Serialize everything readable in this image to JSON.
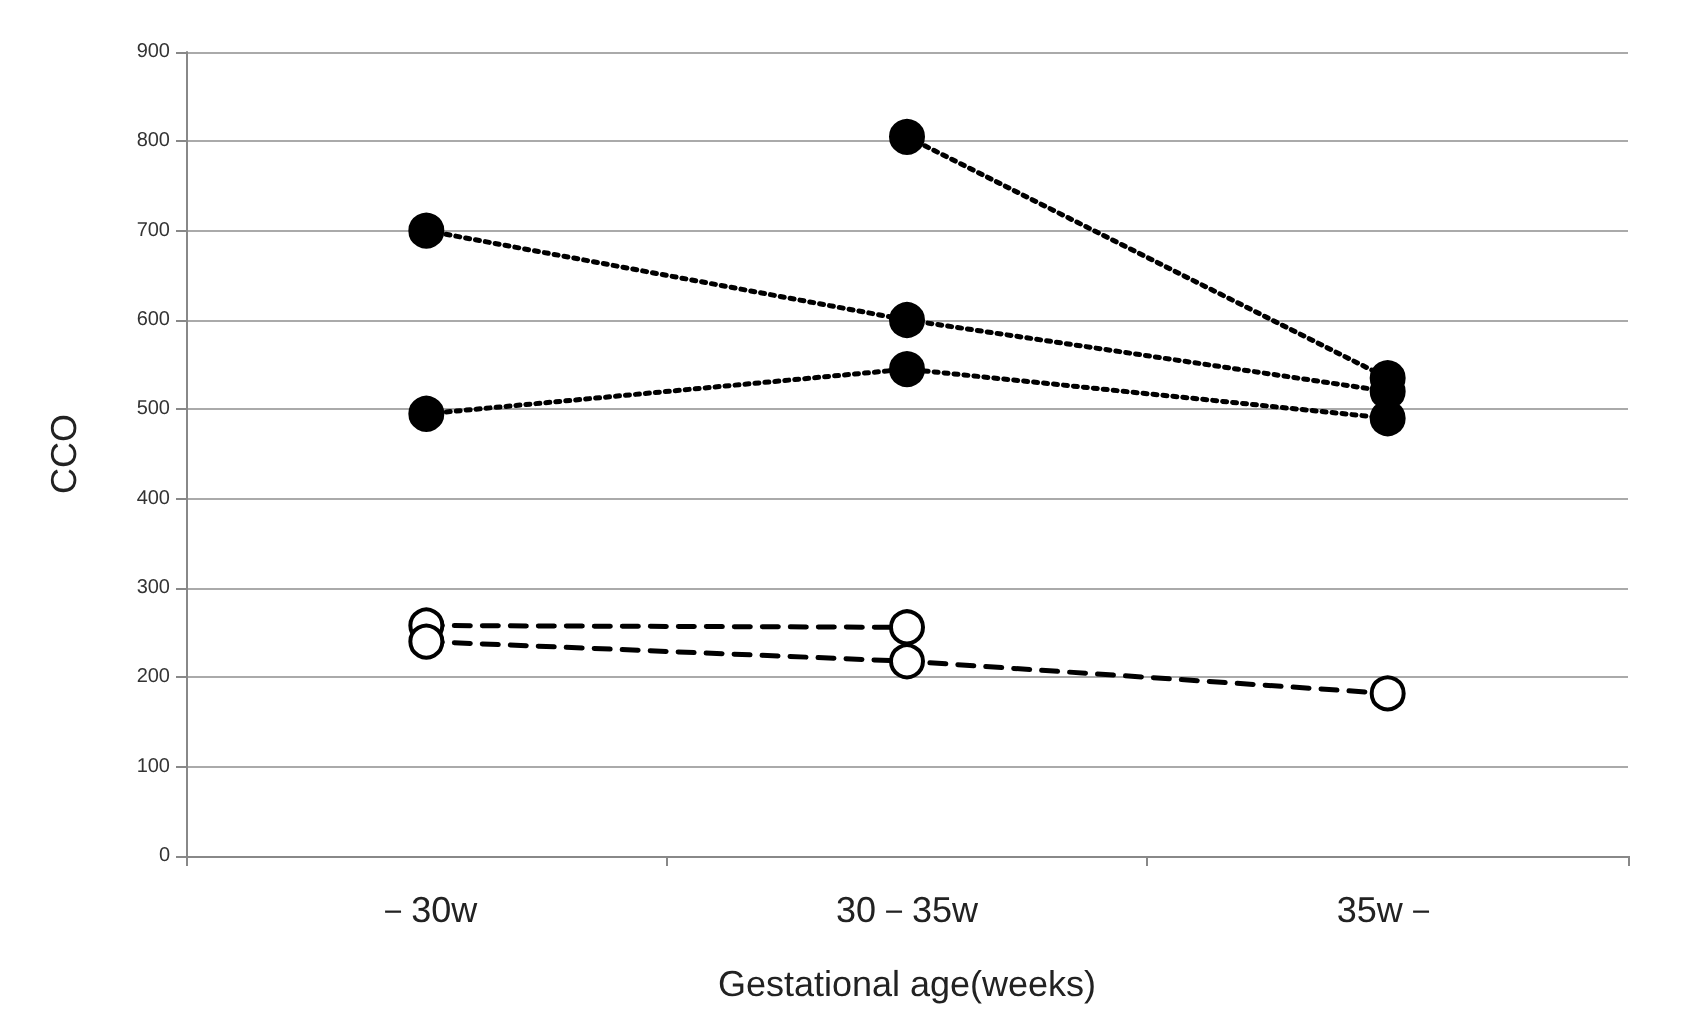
{
  "chart_data": {
    "type": "line",
    "xlabel": "Gestational age(weeks)",
    "ylabel": "CCO",
    "categories": [
      "－30w",
      "30－35w",
      "35w－"
    ],
    "ylim": [
      0,
      900
    ],
    "yticks": [
      0,
      100,
      200,
      300,
      400,
      500,
      600,
      700,
      800,
      900
    ],
    "grid": "y",
    "series": [
      {
        "color": "#000000",
        "values": [
          700,
          600,
          520
        ],
        "marker": "circle",
        "line_style": "dotted"
      },
      {
        "color": "#000000",
        "values": [
          495,
          545,
          490
        ],
        "marker": "circle",
        "line_style": "dotted"
      },
      {
        "color": "#000000",
        "values": [
          null,
          805,
          535
        ],
        "marker": "circle",
        "line_style": "dotted"
      },
      {
        "color": "#000000",
        "values": [
          258,
          256,
          null
        ],
        "marker": "open_circle",
        "line_style": "dashed"
      },
      {
        "color": "#000000",
        "values": [
          240,
          218,
          182
        ],
        "marker": "open_circle",
        "line_style": "dashed"
      }
    ]
  }
}
